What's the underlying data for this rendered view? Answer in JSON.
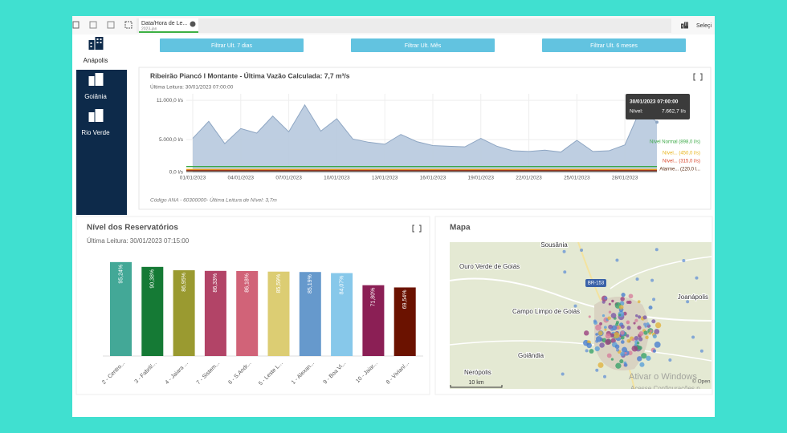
{
  "toolbar": {
    "tab_title": "Data/Hora de Le...",
    "tab_value": "2023-jan",
    "selections": "Seleçi"
  },
  "sidebar": {
    "items": [
      "Anápolis",
      "Goiânia",
      "Rio Verde"
    ]
  },
  "filters": [
    "Filtrar Ult. 7 dias",
    "Filtrar Ult. Mês",
    "Filtrar Ult. 6 meses"
  ],
  "chart_data": [
    {
      "type": "area",
      "title": "Ribeirão Piancó I Montante - Última Vazão Calculada: 7,7 m³/s",
      "subtitle": "Última Leitura: 30/01/2023 07:00:00",
      "categories": [
        "01/01/2023",
        null,
        null,
        "04/01/2023",
        null,
        null,
        "07/01/2023",
        null,
        null,
        "10/01/2023",
        null,
        null,
        "13/01/2023",
        null,
        null,
        "16/01/2023",
        null,
        null,
        "19/01/2023",
        null,
        null,
        "22/01/2023",
        null,
        null,
        "25/01/2023",
        null,
        null,
        "28/01/2023",
        null,
        null
      ],
      "values": [
        5200,
        7800,
        4400,
        6700,
        6000,
        8600,
        6200,
        10300,
        6300,
        8200,
        5100,
        4600,
        4300,
        5800,
        4700,
        4100,
        4000,
        3900,
        5200,
        4000,
        3300,
        3200,
        3400,
        3100,
        4900,
        3200,
        3300,
        4200,
        9800,
        7662.7
      ],
      "color": "#b7c9de",
      "line_color": "#8ea6c3",
      "ylim": [
        0,
        12000
      ],
      "yticks": [
        {
          "value": 0,
          "label": "0,0 l/s"
        },
        {
          "value": 5000,
          "label": "5.000,0 l/s"
        },
        {
          "value": 11000,
          "label": "11.000,0 l/s"
        }
      ],
      "reference_lines": [
        {
          "value": 898,
          "label": "Nível Normal (898,0 l/s)",
          "color": "#3aa845"
        },
        {
          "value": 450,
          "label": "Nível... (450,0 l/s)",
          "color": "#e8b319"
        },
        {
          "value": 315,
          "label": "Nível... (315,0 l/s)",
          "color": "#d9452b"
        },
        {
          "value": 220,
          "label": "Alarme... (220,0 l...",
          "color": "#5a2a10"
        }
      ],
      "tooltip": {
        "title": "30/01/2023 07:00:00",
        "label": "Nível:",
        "value": "7.662,7 l/s"
      },
      "footer": "Código ANA - 60300000- Última Leitura de Nível: 3,7m"
    },
    {
      "type": "bar",
      "title": "Nível dos Reservatórios",
      "subtitle": "Última Leitura: 30/01/2023 07:15:00",
      "categories": [
        "2 - Centro...",
        "3 - Fabril/...",
        "4 - Jaiara ...",
        "7 - Sistem...",
        "6 - S.Andr...",
        "5 - Leste L...",
        "1 - Alexan...",
        "9 - Boa Vi...",
        "10 - Jaiar...",
        "8 - Vivian/..."
      ],
      "values": [
        95.24,
        90.38,
        86.95,
        86.33,
        86.18,
        85.59,
        85.19,
        84.07,
        71.8,
        69.54
      ],
      "value_labels": [
        "95,24%",
        "90,38%",
        "86,95%",
        "86,33%",
        "86,18%",
        "85,59%",
        "85,19%",
        "84,07%",
        "71,80%",
        "69,54%"
      ],
      "colors": [
        "#43a897",
        "#157a35",
        "#9a9a30",
        "#b24467",
        "#d16378",
        "#dccd73",
        "#6699cc",
        "#87c8ea",
        "#8b1f55",
        "#6b1200"
      ],
      "ylim": [
        0,
        100
      ]
    }
  ],
  "map": {
    "title": "Mapa",
    "places": [
      "Sousânia",
      "Ouro Verde de Goiás",
      "Campo Limpo de Goiás",
      "Joanápolis",
      "Goiândia",
      "Nerópolis"
    ],
    "road": "BR-153",
    "scale": "10 km",
    "attribution": "© Open",
    "watermark": [
      "Ativar o Windows",
      "Acesse Configurações p"
    ]
  }
}
